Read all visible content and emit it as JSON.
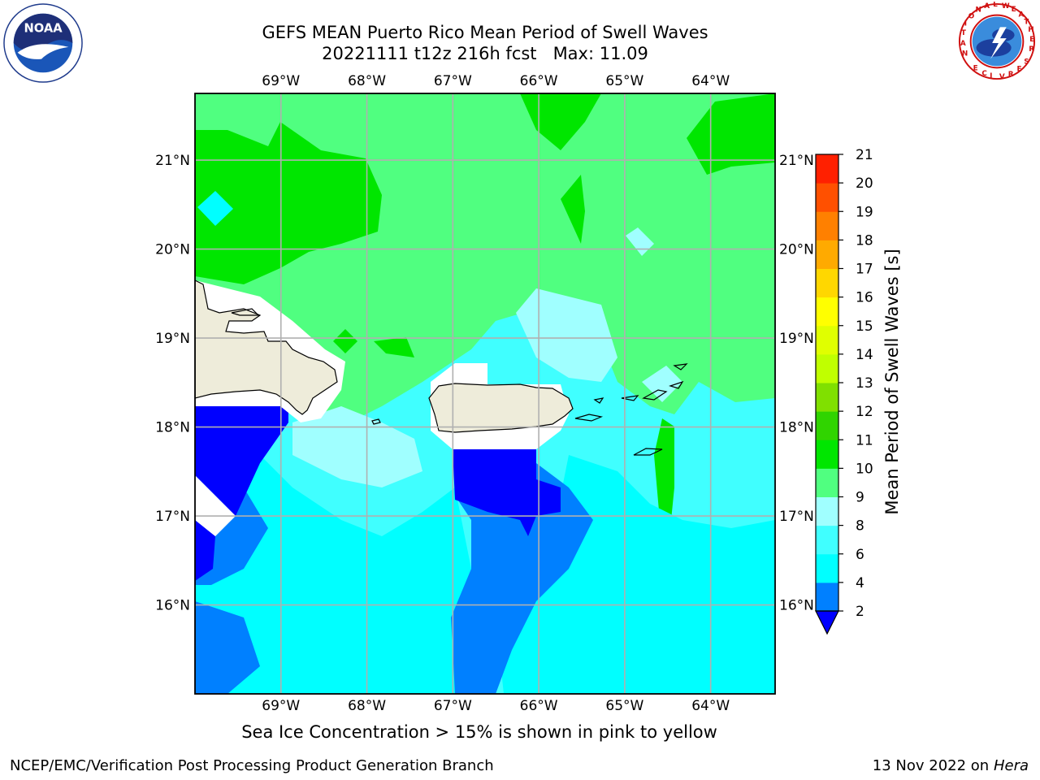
{
  "title": {
    "line1": "GEFS MEAN Puerto Rico Mean Period of Swell Waves",
    "line2": "20221111 t12z 216h fcst   Max: 11.09"
  },
  "logos": {
    "left": "noaa-logo",
    "left_text_outer": "NATIONAL OCEANIC AND ATMOSPHERIC ADMINISTRATION",
    "left_text_inner": "NOAA",
    "left_text_bottom": "U.S. DEPARTMENT OF COMMERCE",
    "right": "nws-logo",
    "right_text": "NATIONAL WEATHER SERVICE"
  },
  "map": {
    "lon_labels": [
      "69°W",
      "68°W",
      "67°W",
      "66°W",
      "65°W",
      "64°W"
    ],
    "lat_labels": [
      "21°N",
      "20°N",
      "19°N",
      "18°N",
      "17°N",
      "16°N"
    ],
    "lon_values": [
      -69,
      -68,
      -67,
      -66,
      -65,
      -64
    ],
    "lat_values": [
      21,
      20,
      19,
      18,
      17,
      16
    ],
    "extent": {
      "lon_min": -70,
      "lon_max": -63.25,
      "lat_min": 15,
      "lat_max": 21.75
    },
    "land_color": "#eeecda",
    "gridline_color": "#b0b0b0"
  },
  "colorbar": {
    "label": "Mean Period of Swell Waves [s]",
    "ticks": [
      "2",
      "4",
      "6",
      "8",
      "9",
      "10",
      "11",
      "12",
      "13",
      "14",
      "15",
      "16",
      "17",
      "18",
      "19",
      "20",
      "21"
    ],
    "colors": [
      "#0000ff",
      "#0080ff",
      "#00ffff",
      "#40ffff",
      "#a0ffff",
      "#50ff80",
      "#00e600",
      "#30d400",
      "#80e000",
      "#c0ff00",
      "#e0ff00",
      "#ffff00",
      "#ffd700",
      "#ffaa00",
      "#ff8000",
      "#ff5000",
      "#ff2000",
      "#ff0000"
    ],
    "extend_color": "#0000ff"
  },
  "chart_data": {
    "type": "heatmap",
    "title": "GEFS MEAN Puerto Rico Mean Period of Swell Waves",
    "subtitle": "20221111 t12z 216h fcst   Max: 11.09",
    "xlabel": "",
    "ylabel": "",
    "colorbar_label": "Mean Period of Swell Waves [s]",
    "value_range": [
      2,
      21
    ],
    "max": 11.09
  },
  "note": "Sea Ice Concentration > 15% is shown in pink to yellow",
  "footer": {
    "left": "NCEP/EMC/Verification Post Processing Product Generation Branch",
    "right_date": "13 Nov 2022 on",
    "right_host": "Hera"
  }
}
